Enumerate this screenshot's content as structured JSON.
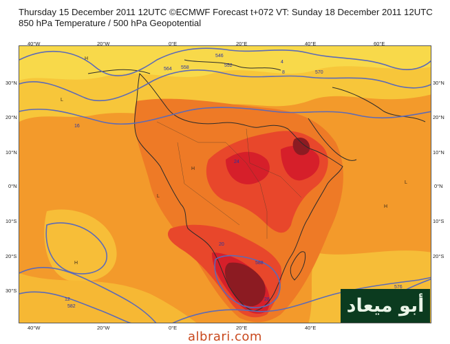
{
  "header": {
    "line1": "Thursday 15 December 2011 12UTC ©ECMWF Forecast t+072 VT: Sunday 18 December 2011 12UTC",
    "line2": "850 hPa Temperature / 500 hPa Geopotential"
  },
  "map": {
    "lon_ticks": [
      "40°W",
      "20°W",
      "0°E",
      "20°E",
      "40°E",
      "60°E"
    ],
    "lat_ticks": [
      "30°N",
      "20°N",
      "10°N",
      "0°N",
      "10°S",
      "20°S",
      "30°S"
    ],
    "contour_labels": [
      "546",
      "552",
      "558",
      "564",
      "570",
      "576",
      "582",
      "588",
      "12",
      "16",
      "20",
      "24",
      "28",
      "4",
      "8"
    ],
    "pressure_marks": [
      "H",
      "L"
    ],
    "colors": {
      "ocean_warm": "#f39a2b",
      "land_hot": "#e8472b",
      "land_very_hot": "#d61f2a",
      "land_extreme": "#8c1b22",
      "north_cool": "#f7c63a",
      "contour": "#5b6ab8",
      "coastline": "#2b2b2b"
    }
  },
  "logo": {
    "text": "أبو ميعاد"
  },
  "watermark": {
    "text": "albrari.com"
  }
}
